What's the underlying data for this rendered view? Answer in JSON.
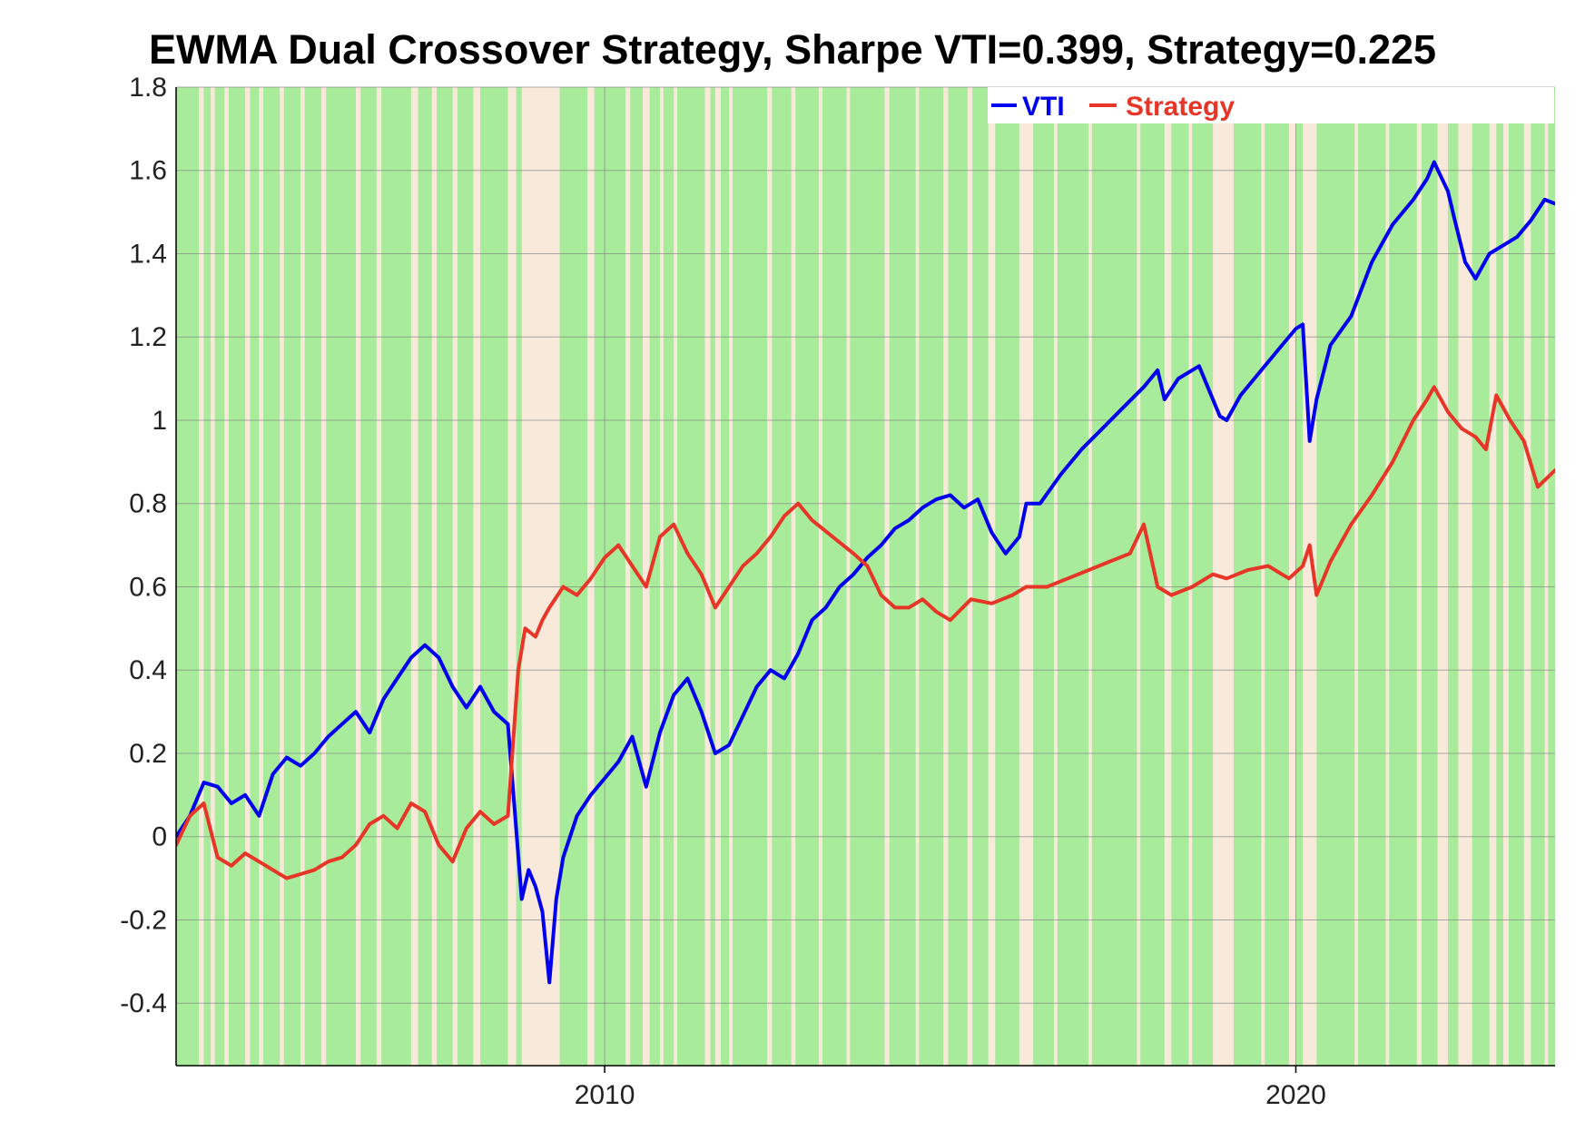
{
  "chart_data": {
    "type": "line",
    "title": "EWMA Dual Crossover Strategy, Sharpe VTI=0.399, Strategy=0.225",
    "xlabel": "",
    "ylabel": "",
    "xlim": [
      2003.8,
      2023.75
    ],
    "ylim": [
      -0.55,
      1.8
    ],
    "x_ticks": [
      2010,
      2020
    ],
    "x_tick_labels": [
      "2010",
      "2020"
    ],
    "y_ticks": [
      -0.4,
      -0.2,
      0,
      0.2,
      0.4,
      0.6,
      0.8,
      1,
      1.2,
      1.4,
      1.6,
      1.8
    ],
    "y_tick_labels": [
      "-0.4",
      "-0.2",
      "0",
      "0.2",
      "0.4",
      "0.6",
      "0.8",
      "1",
      "1.2",
      "1.4",
      "1.6",
      "1.8"
    ],
    "grid": true,
    "legend_position": "top-right",
    "background_color": "#f8e9da",
    "long_regime_color": "#a8eb9b",
    "short_regime_color": "#f8e9da",
    "short_regime_intervals": [
      [
        2004.13,
        2004.2
      ],
      [
        2004.3,
        2004.36
      ],
      [
        2004.5,
        2004.56
      ],
      [
        2004.8,
        2004.87
      ],
      [
        2005.0,
        2005.06
      ],
      [
        2005.3,
        2005.36
      ],
      [
        2005.6,
        2005.66
      ],
      [
        2005.9,
        2005.97
      ],
      [
        2006.4,
        2006.47
      ],
      [
        2006.7,
        2006.77
      ],
      [
        2007.2,
        2007.3
      ],
      [
        2007.5,
        2007.57
      ],
      [
        2007.8,
        2007.87
      ],
      [
        2008.1,
        2008.2
      ],
      [
        2008.6,
        2008.72
      ],
      [
        2008.8,
        2009.35
      ],
      [
        2009.75,
        2009.85
      ],
      [
        2010.3,
        2010.37
      ],
      [
        2010.55,
        2010.65
      ],
      [
        2010.8,
        2010.85
      ],
      [
        2011.0,
        2011.05
      ],
      [
        2011.45,
        2011.53
      ],
      [
        2011.6,
        2011.68
      ],
      [
        2011.8,
        2011.85
      ],
      [
        2012.35,
        2012.42
      ],
      [
        2012.7,
        2012.76
      ],
      [
        2013.1,
        2013.15
      ],
      [
        2013.5,
        2013.55
      ],
      [
        2014.05,
        2014.12
      ],
      [
        2014.5,
        2014.55
      ],
      [
        2014.9,
        2014.97
      ],
      [
        2015.25,
        2015.32
      ],
      [
        2015.55,
        2015.65
      ],
      [
        2016.0,
        2016.2
      ],
      [
        2016.5,
        2016.55
      ],
      [
        2017.0,
        2017.05
      ],
      [
        2017.7,
        2017.75
      ],
      [
        2018.1,
        2018.2
      ],
      [
        2018.45,
        2018.5
      ],
      [
        2018.8,
        2019.1
      ],
      [
        2019.5,
        2019.55
      ],
      [
        2019.9,
        2020.0
      ],
      [
        2020.1,
        2020.3
      ],
      [
        2020.85,
        2020.9
      ],
      [
        2021.3,
        2021.35
      ],
      [
        2021.75,
        2021.82
      ],
      [
        2022.05,
        2022.2
      ],
      [
        2022.35,
        2022.55
      ],
      [
        2022.8,
        2022.9
      ],
      [
        2023.0,
        2023.08
      ],
      [
        2023.3,
        2023.4
      ],
      [
        2023.6,
        2023.65
      ]
    ],
    "series": [
      {
        "name": "VTI",
        "color": "#0000ee",
        "x": [
          2003.8,
          2004.0,
          2004.2,
          2004.4,
          2004.6,
          2004.8,
          2005.0,
          2005.2,
          2005.4,
          2005.6,
          2005.8,
          2006.0,
          2006.2,
          2006.4,
          2006.6,
          2006.8,
          2007.0,
          2007.2,
          2007.4,
          2007.6,
          2007.8,
          2008.0,
          2008.2,
          2008.4,
          2008.6,
          2008.8,
          2008.9,
          2009.0,
          2009.1,
          2009.2,
          2009.3,
          2009.4,
          2009.6,
          2009.8,
          2010.0,
          2010.2,
          2010.4,
          2010.6,
          2010.8,
          2011.0,
          2011.2,
          2011.4,
          2011.6,
          2011.8,
          2012.0,
          2012.2,
          2012.4,
          2012.6,
          2012.8,
          2013.0,
          2013.2,
          2013.4,
          2013.6,
          2013.8,
          2014.0,
          2014.2,
          2014.4,
          2014.6,
          2014.8,
          2015.0,
          2015.2,
          2015.4,
          2015.6,
          2015.8,
          2016.0,
          2016.1,
          2016.3,
          2016.6,
          2016.9,
          2017.2,
          2017.5,
          2017.8,
          2018.0,
          2018.1,
          2018.3,
          2018.6,
          2018.9,
          2019.0,
          2019.2,
          2019.5,
          2019.8,
          2020.0,
          2020.1,
          2020.2,
          2020.3,
          2020.5,
          2020.8,
          2021.1,
          2021.4,
          2021.7,
          2021.9,
          2022.0,
          2022.2,
          2022.3,
          2022.45,
          2022.6,
          2022.8,
          2023.0,
          2023.2,
          2023.4,
          2023.6,
          2023.75
        ],
        "y": [
          0.0,
          0.05,
          0.13,
          0.12,
          0.08,
          0.1,
          0.05,
          0.15,
          0.19,
          0.17,
          0.2,
          0.24,
          0.27,
          0.3,
          0.25,
          0.33,
          0.38,
          0.43,
          0.46,
          0.43,
          0.36,
          0.31,
          0.36,
          0.3,
          0.27,
          -0.15,
          -0.08,
          -0.12,
          -0.18,
          -0.35,
          -0.15,
          -0.05,
          0.05,
          0.1,
          0.14,
          0.18,
          0.24,
          0.12,
          0.25,
          0.34,
          0.38,
          0.3,
          0.2,
          0.22,
          0.29,
          0.36,
          0.4,
          0.38,
          0.44,
          0.52,
          0.55,
          0.6,
          0.63,
          0.67,
          0.7,
          0.74,
          0.76,
          0.79,
          0.81,
          0.82,
          0.79,
          0.81,
          0.73,
          0.68,
          0.72,
          0.8,
          0.8,
          0.87,
          0.93,
          0.98,
          1.03,
          1.08,
          1.12,
          1.05,
          1.1,
          1.13,
          1.01,
          1.0,
          1.06,
          1.12,
          1.18,
          1.22,
          1.23,
          0.95,
          1.05,
          1.18,
          1.25,
          1.38,
          1.47,
          1.53,
          1.58,
          1.62,
          1.55,
          1.48,
          1.38,
          1.34,
          1.4,
          1.42,
          1.44,
          1.48,
          1.53,
          1.52
        ]
      },
      {
        "name": "Strategy",
        "color": "#e73527",
        "x": [
          2003.8,
          2004.0,
          2004.2,
          2004.4,
          2004.6,
          2004.8,
          2005.0,
          2005.2,
          2005.4,
          2005.6,
          2005.8,
          2006.0,
          2006.2,
          2006.4,
          2006.6,
          2006.8,
          2007.0,
          2007.2,
          2007.4,
          2007.6,
          2007.8,
          2008.0,
          2008.2,
          2008.4,
          2008.6,
          2008.75,
          2008.85,
          2009.0,
          2009.1,
          2009.2,
          2009.4,
          2009.6,
          2009.8,
          2010.0,
          2010.2,
          2010.4,
          2010.6,
          2010.8,
          2011.0,
          2011.2,
          2011.4,
          2011.6,
          2011.8,
          2012.0,
          2012.2,
          2012.4,
          2012.6,
          2012.8,
          2013.0,
          2013.3,
          2013.6,
          2013.8,
          2014.0,
          2014.2,
          2014.4,
          2014.6,
          2014.8,
          2015.0,
          2015.3,
          2015.6,
          2015.9,
          2016.1,
          2016.4,
          2016.7,
          2017.0,
          2017.3,
          2017.6,
          2017.8,
          2018.0,
          2018.2,
          2018.5,
          2018.8,
          2019.0,
          2019.3,
          2019.6,
          2019.9,
          2020.1,
          2020.2,
          2020.3,
          2020.5,
          2020.8,
          2021.1,
          2021.4,
          2021.7,
          2021.9,
          2022.0,
          2022.2,
          2022.4,
          2022.6,
          2022.75,
          2022.9,
          2023.1,
          2023.3,
          2023.5,
          2023.75
        ],
        "y": [
          -0.02,
          0.05,
          0.08,
          -0.05,
          -0.07,
          -0.04,
          -0.06,
          -0.08,
          -0.1,
          -0.09,
          -0.08,
          -0.06,
          -0.05,
          -0.02,
          0.03,
          0.05,
          0.02,
          0.08,
          0.06,
          -0.02,
          -0.06,
          0.02,
          0.06,
          0.03,
          0.05,
          0.4,
          0.5,
          0.48,
          0.52,
          0.55,
          0.6,
          0.58,
          0.62,
          0.67,
          0.7,
          0.65,
          0.6,
          0.72,
          0.75,
          0.68,
          0.63,
          0.55,
          0.6,
          0.65,
          0.68,
          0.72,
          0.77,
          0.8,
          0.76,
          0.72,
          0.68,
          0.65,
          0.58,
          0.55,
          0.55,
          0.57,
          0.54,
          0.52,
          0.57,
          0.56,
          0.58,
          0.6,
          0.6,
          0.62,
          0.64,
          0.66,
          0.68,
          0.75,
          0.6,
          0.58,
          0.6,
          0.63,
          0.62,
          0.64,
          0.65,
          0.62,
          0.65,
          0.7,
          0.58,
          0.66,
          0.75,
          0.82,
          0.9,
          1.0,
          1.05,
          1.08,
          1.02,
          0.98,
          0.96,
          0.93,
          1.06,
          1.0,
          0.95,
          0.84,
          0.88
        ]
      }
    ]
  }
}
